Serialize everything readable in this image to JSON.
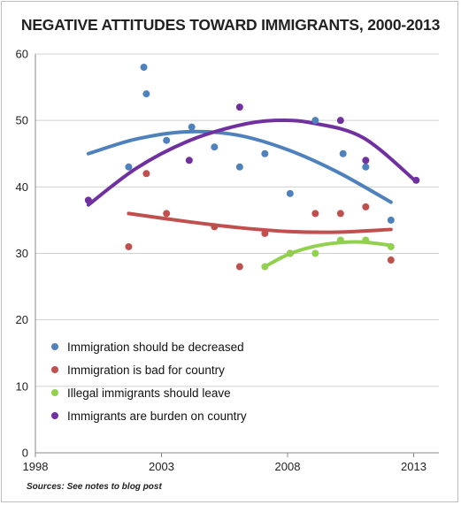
{
  "title": "NEGATIVE ATTITUDES TOWARD IMMIGRANTS, 2000-2013",
  "source_note": "Sources: See notes to blog post",
  "chart_data": {
    "type": "scatter",
    "title": "NEGATIVE ATTITUDES TOWARD IMMIGRANTS, 2000-2013",
    "xlabel": "",
    "ylabel": "",
    "xlim": [
      1998,
      2014
    ],
    "ylim": [
      0,
      60
    ],
    "x_ticks": [
      1998,
      2003,
      2008,
      2013
    ],
    "y_ticks": [
      0,
      10,
      20,
      30,
      40,
      50,
      60
    ],
    "grid": "horizontal",
    "legend_position": "bottom-left",
    "trendlines": "polynomial",
    "series": [
      {
        "name": "Immigration should be decreased",
        "color": "#4f81bd",
        "points": [
          [
            2001.7,
            43
          ],
          [
            2002.3,
            58
          ],
          [
            2002.4,
            54
          ],
          [
            2003.2,
            47
          ],
          [
            2004.2,
            49
          ],
          [
            2005.1,
            46
          ],
          [
            2006.1,
            43
          ],
          [
            2007.1,
            45
          ],
          [
            2008.1,
            39
          ],
          [
            2009.1,
            50
          ],
          [
            2010.2,
            45
          ],
          [
            2011.1,
            43
          ],
          [
            2012.1,
            35
          ]
        ],
        "trend": [
          [
            2000.1,
            45
          ],
          [
            2002,
            47.2
          ],
          [
            2004,
            48.3
          ],
          [
            2006,
            47.8
          ],
          [
            2008,
            45.6
          ],
          [
            2010,
            42.2
          ],
          [
            2012.1,
            37.7
          ]
        ]
      },
      {
        "name": "Immigration is bad for country",
        "color": "#c0504d",
        "points": [
          [
            2001.7,
            31
          ],
          [
            2002.4,
            42
          ],
          [
            2003.2,
            36
          ],
          [
            2005.1,
            34
          ],
          [
            2006.1,
            28
          ],
          [
            2007.1,
            33
          ],
          [
            2008.1,
            30
          ],
          [
            2009.1,
            36
          ],
          [
            2010.1,
            36
          ],
          [
            2011.1,
            37
          ],
          [
            2012.1,
            29
          ]
        ],
        "trend": [
          [
            2001.7,
            36
          ],
          [
            2004,
            34.8
          ],
          [
            2006,
            33.9
          ],
          [
            2008,
            33.3
          ],
          [
            2010,
            33.2
          ],
          [
            2012.1,
            33.6
          ]
        ]
      },
      {
        "name": "Illegal immigrants should leave",
        "color": "#92d050",
        "points": [
          [
            2007.1,
            28
          ],
          [
            2008.1,
            30
          ],
          [
            2009.1,
            30
          ],
          [
            2010.1,
            32
          ],
          [
            2011.1,
            32
          ],
          [
            2012.1,
            31
          ]
        ],
        "trend": [
          [
            2007.1,
            28
          ],
          [
            2008,
            29.8
          ],
          [
            2009,
            31
          ],
          [
            2010,
            31.6
          ],
          [
            2011,
            31.7
          ],
          [
            2012.1,
            31.2
          ]
        ]
      },
      {
        "name": "Immigrants are burden on country",
        "color": "#7030a0",
        "points": [
          [
            2000.1,
            38
          ],
          [
            2004.1,
            44
          ],
          [
            2006.1,
            52
          ],
          [
            2010.1,
            50
          ],
          [
            2011.1,
            44
          ],
          [
            2013.1,
            41
          ]
        ],
        "trend": [
          [
            2000.1,
            37.3
          ],
          [
            2002,
            42.8
          ],
          [
            2004,
            46.8
          ],
          [
            2006,
            49.2
          ],
          [
            2007.5,
            50
          ],
          [
            2009,
            49.6
          ],
          [
            2011,
            47.4
          ],
          [
            2013.1,
            40.8
          ]
        ]
      }
    ]
  }
}
